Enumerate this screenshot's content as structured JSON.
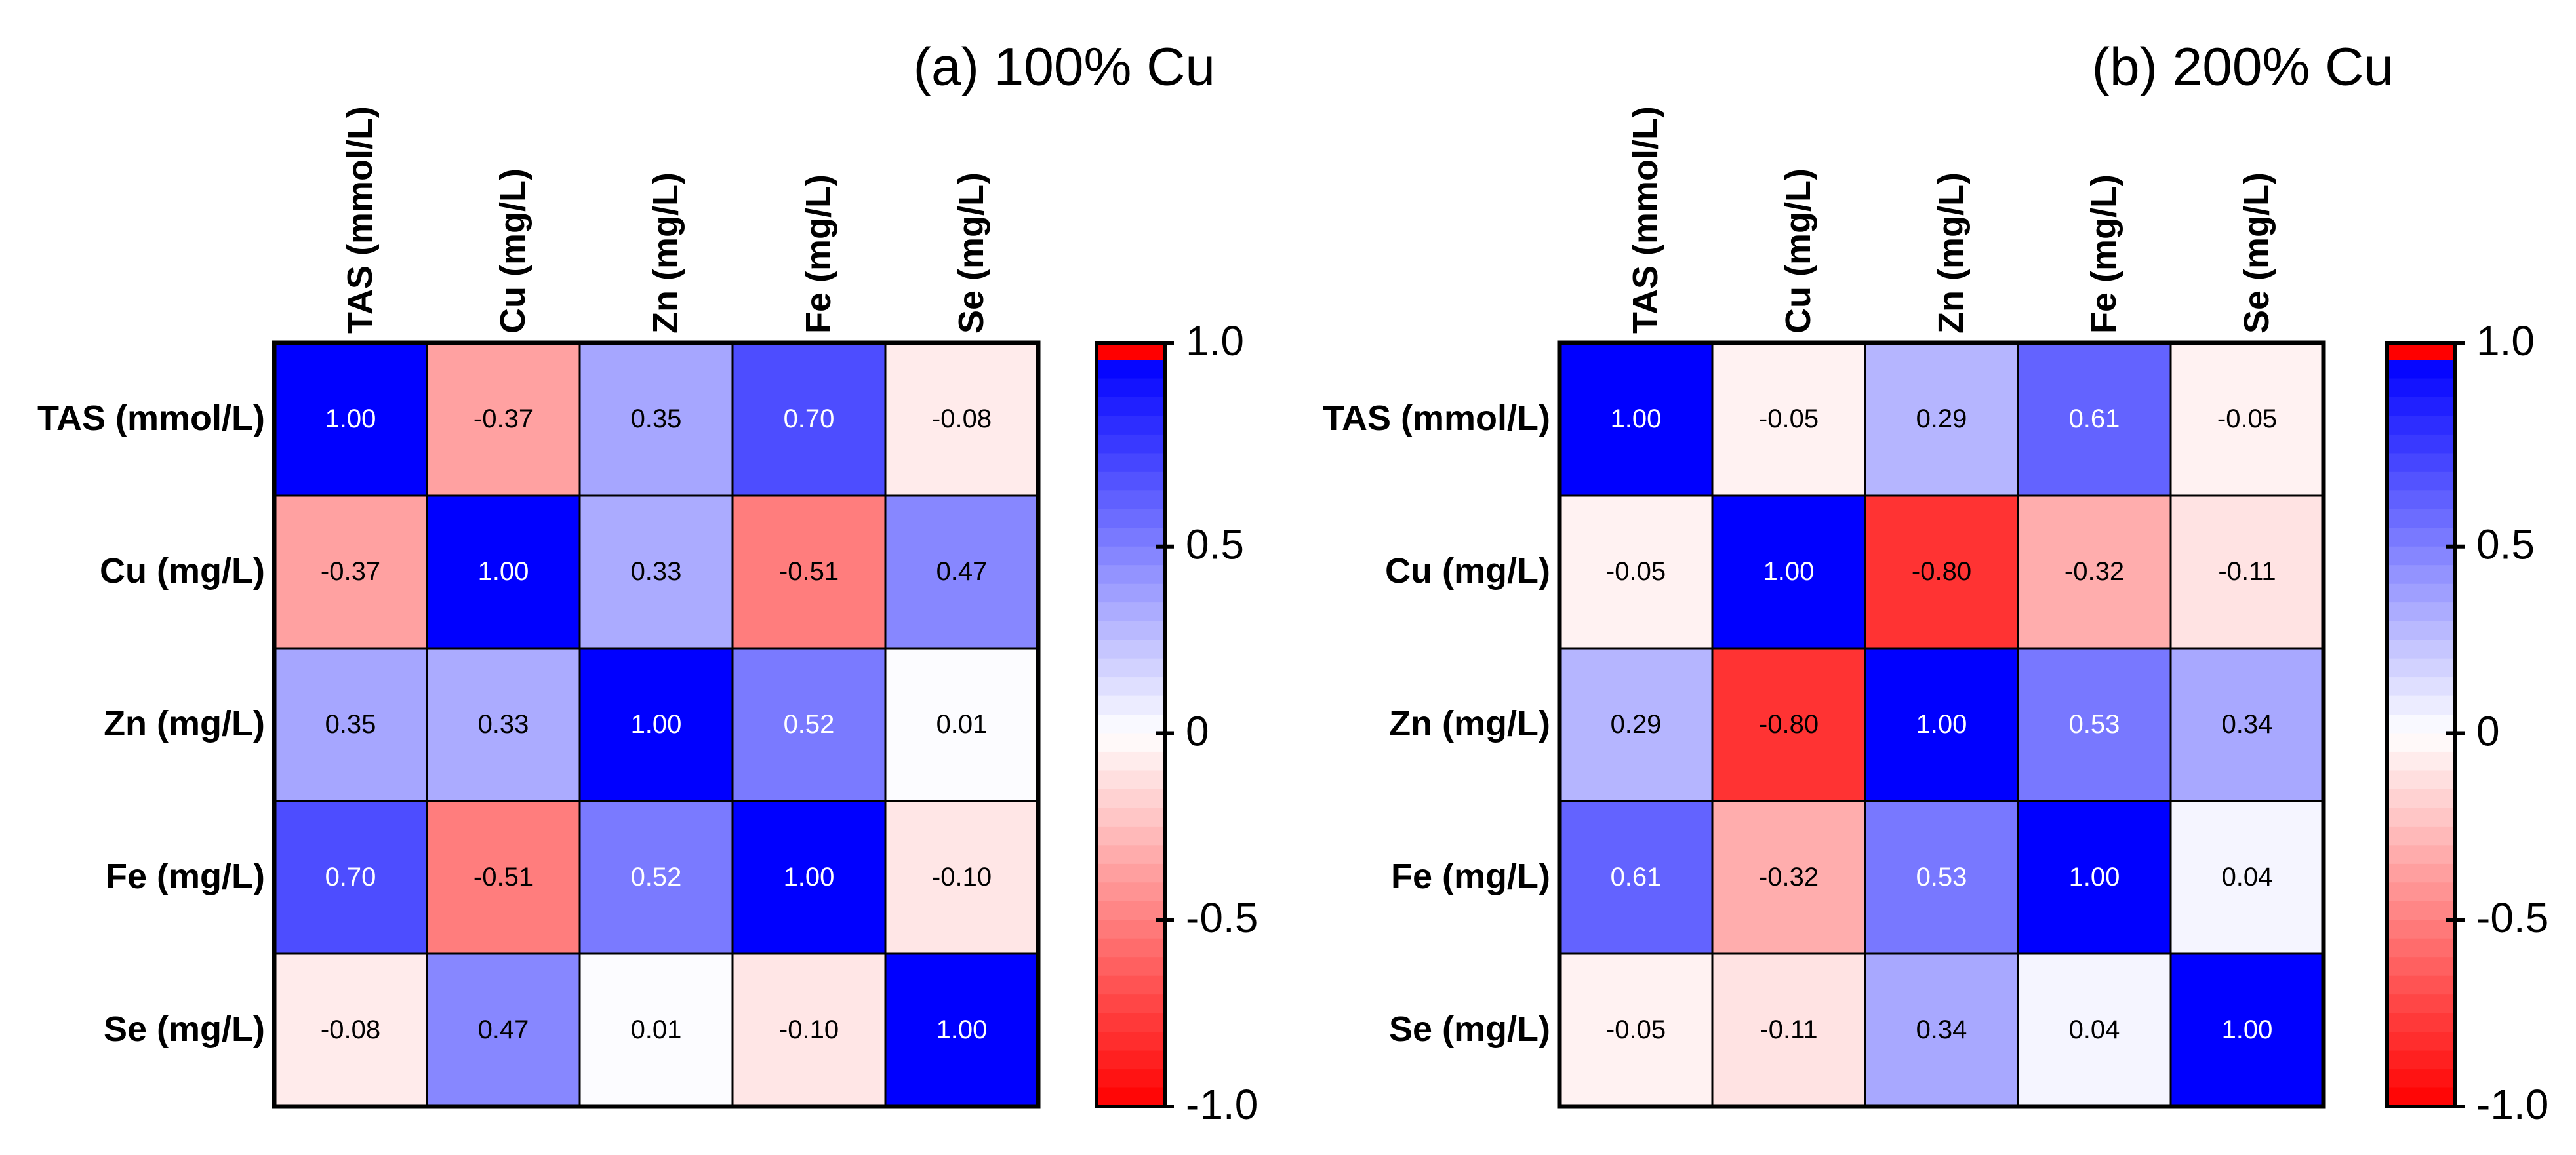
{
  "chart_data": [
    {
      "type": "heatmap",
      "title": "(a) 100% Cu",
      "row_labels": [
        "TAS (mmol/L)",
        "Cu (mg/L)",
        "Zn (mg/L)",
        "Fe (mg/L)",
        "Se (mg/L)"
      ],
      "col_labels": [
        "TAS (mmol/L)",
        "Cu (mg/L)",
        "Zn (mg/L)",
        "Fe (mg/L)",
        "Se (mg/L)"
      ],
      "values": [
        [
          1.0,
          -0.37,
          0.35,
          0.7,
          -0.08
        ],
        [
          -0.37,
          1.0,
          0.33,
          -0.51,
          0.47
        ],
        [
          0.35,
          0.33,
          1.0,
          0.52,
          0.01
        ],
        [
          0.7,
          -0.51,
          0.52,
          1.0,
          -0.1
        ],
        [
          -0.08,
          0.47,
          0.01,
          -0.1,
          1.0
        ]
      ],
      "colorbar": {
        "min": -1.0,
        "max": 1.0,
        "tick_values": [
          1.0,
          0.5,
          0,
          -0.5,
          -1.0
        ],
        "tick_labels": [
          "1.0",
          "0.5",
          "0",
          "-0.5",
          "-1.0"
        ]
      }
    },
    {
      "type": "heatmap",
      "title": "(b) 200% Cu",
      "row_labels": [
        "TAS (mmol/L)",
        "Cu (mg/L)",
        "Zn (mg/L)",
        "Fe (mg/L)",
        "Se (mg/L)"
      ],
      "col_labels": [
        "TAS (mmol/L)",
        "Cu (mg/L)",
        "Zn (mg/L)",
        "Fe (mg/L)",
        "Se (mg/L)"
      ],
      "values": [
        [
          1.0,
          -0.05,
          0.29,
          0.61,
          -0.05
        ],
        [
          -0.05,
          1.0,
          -0.8,
          -0.32,
          -0.11
        ],
        [
          0.29,
          -0.8,
          1.0,
          0.53,
          0.34
        ],
        [
          0.61,
          -0.32,
          0.53,
          1.0,
          0.04
        ],
        [
          -0.05,
          -0.11,
          0.34,
          0.04,
          1.0
        ]
      ],
      "colorbar": {
        "min": -1.0,
        "max": 1.0,
        "tick_values": [
          1.0,
          0.5,
          0,
          -0.5,
          -1.0
        ],
        "tick_labels": [
          "1.0",
          "0.5",
          "0",
          "-0.5",
          "-1.0"
        ]
      }
    }
  ],
  "colors": {
    "positive": "#0000ff",
    "negative": "#ff0000",
    "neutral": "#ffffff",
    "overflow": "#ff0000"
  }
}
